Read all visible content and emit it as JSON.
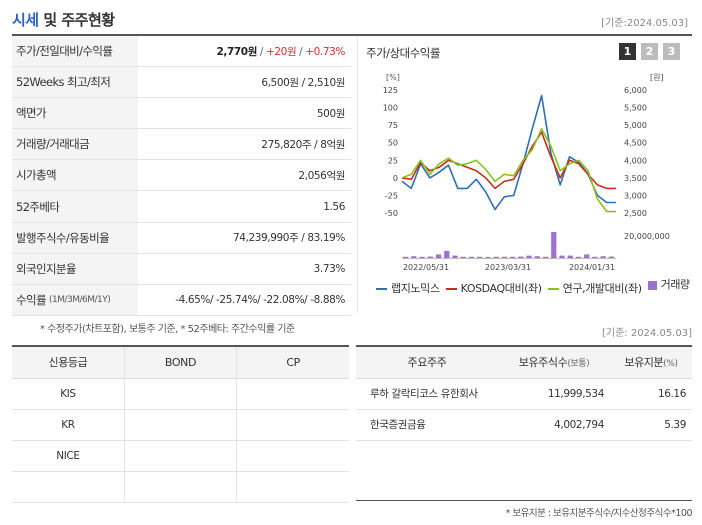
{
  "header": {
    "title_main": "시세",
    "title_rest": " 및 주주현황",
    "date": "[기준:2024.05.03]"
  },
  "quote": {
    "rows": [
      {
        "label": "주가/전일대비/수익률",
        "price": "2,770원",
        "sep1": " / ",
        "change": "+20원",
        "sep2": " / ",
        "rate": "+0.73%"
      },
      {
        "label": "52Weeks 최고/최저",
        "value": "6,500원 / 2,510원"
      },
      {
        "label": "액면가",
        "value": "500원"
      },
      {
        "label": "거래량/거래대금",
        "value": "275,820주 / 8억원"
      },
      {
        "label": "시가총액",
        "value": "2,056억원"
      },
      {
        "label": "52주베타",
        "value": "1.56"
      },
      {
        "label": "발행주식수/유동비율",
        "value": "74,239,990주 / 83.19%"
      },
      {
        "label": "외국인지분율",
        "value": "3.73%"
      },
      {
        "label": "수익률",
        "sub": "(1M/3M/6M/1Y)",
        "value": "-4.65%/ -25.74%/ -22.08%/ -8.88%"
      }
    ],
    "note": "* 수정주가(차트포함), 보통주 기준, * 52주베타: 주간수익률 기준"
  },
  "chart_panel": {
    "title": "주가/상대수익률",
    "pages": [
      "1",
      "2",
      "3"
    ],
    "active_page": "1"
  },
  "chart_data": {
    "type": "line",
    "left_unit": "[%]",
    "right_unit": "[원]",
    "left_ticks": [
      "125",
      "100",
      "75",
      "50",
      "25",
      "0",
      "-25",
      "-50"
    ],
    "right_ticks": [
      "6,000",
      "5,500",
      "5,000",
      "4,500",
      "4,000",
      "3,500",
      "3,000",
      "2,500"
    ],
    "volume_tick": "20,000,000",
    "x_ticks": [
      "2022/05/31",
      "2023/03/31",
      "2024/01/31"
    ],
    "ylim": [
      -50,
      125
    ],
    "series": [
      {
        "name": "랩지노믹스",
        "color": "#2e6fb5",
        "values": [
          -5,
          -15,
          20,
          0,
          8,
          18,
          -15,
          -15,
          -2,
          -20,
          -45,
          -27,
          -25,
          20,
          70,
          117,
          35,
          -10,
          30,
          22,
          5,
          -25,
          -35,
          -35
        ]
      },
      {
        "name": "KOSDAQ대비(좌)",
        "color": "#c4301c",
        "values": [
          0,
          -2,
          22,
          10,
          15,
          25,
          20,
          15,
          10,
          0,
          -15,
          -5,
          -2,
          20,
          45,
          65,
          30,
          0,
          25,
          20,
          5,
          -10,
          -15,
          -15
        ]
      },
      {
        "name": "연구,개발대비(좌)",
        "color": "#8cc21e",
        "values": [
          0,
          5,
          25,
          5,
          20,
          28,
          18,
          20,
          25,
          12,
          -5,
          5,
          3,
          25,
          40,
          70,
          45,
          10,
          20,
          25,
          10,
          -30,
          -48,
          -48
        ]
      }
    ],
    "volume": {
      "name": "거래량",
      "color": "#9a72d0",
      "values": [
        1,
        1.5,
        1,
        1.2,
        3,
        6,
        2,
        1,
        1,
        1,
        0.8,
        1,
        1,
        1,
        1.2,
        2,
        1.5,
        1,
        22,
        2,
        2,
        1,
        3,
        1,
        1.5,
        1.2
      ]
    }
  },
  "legend": [
    {
      "label": "랩지노믹스",
      "color": "#2e6fb5",
      "kind": "line"
    },
    {
      "label": "KOSDAQ대비(좌)",
      "color": "#c4301c",
      "kind": "line"
    },
    {
      "label": "연구,개발대비(좌)",
      "color": "#8cc21e",
      "kind": "line"
    },
    {
      "label": "거래량",
      "color": "#9a72d0",
      "kind": "box"
    }
  ],
  "right_date": "[기준: 2024.05.03]",
  "credit": {
    "headers": [
      "신용등급",
      "BOND",
      "CP"
    ],
    "rows": [
      [
        "KIS",
        "",
        ""
      ],
      [
        "KR",
        "",
        ""
      ],
      [
        "NICE",
        "",
        ""
      ],
      [
        "",
        "",
        ""
      ]
    ]
  },
  "holders": {
    "headers": {
      "name": "주요주주",
      "shares": "보유주식수",
      "shares_sub": "(보통)",
      "ratio": "보유지분",
      "ratio_sub": "(%)"
    },
    "rows": [
      {
        "name": "루하 갈락티코스 유한회사",
        "shares": "11,999,534",
        "ratio": "16.16"
      },
      {
        "name": "한국증권금융",
        "shares": "4,002,794",
        "ratio": "5.39"
      },
      {
        "name": "",
        "shares": "",
        "ratio": ""
      },
      {
        "name": "",
        "shares": "",
        "ratio": ""
      }
    ],
    "note": "* 보유지분 : 보유지분주식수/지수산정주식수*100"
  }
}
